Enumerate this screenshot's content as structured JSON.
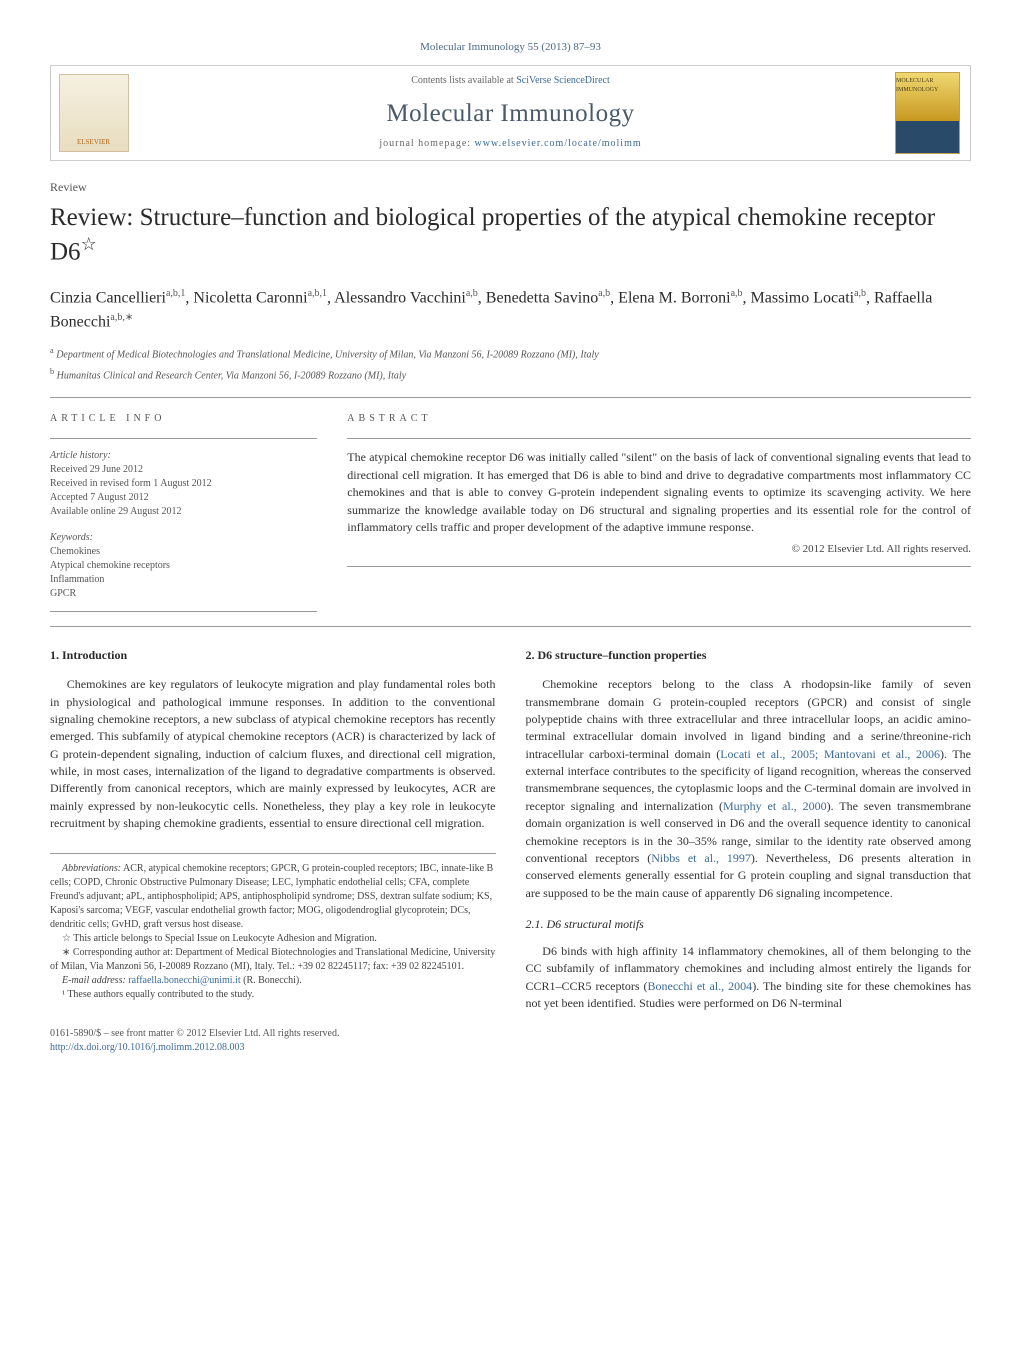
{
  "journal_ref": "Molecular Immunology 55 (2013) 87–93",
  "header": {
    "contents_prefix": "Contents lists available at ",
    "contents_link": "SciVerse ScienceDirect",
    "journal_title": "Molecular Immunology",
    "homepage_prefix": "journal homepage: ",
    "homepage_url": "www.elsevier.com/locate/molimm",
    "publisher_name": "ELSEVIER",
    "cover_caption": "MOLECULAR IMMUNOLOGY"
  },
  "article_type": "Review",
  "title": "Review: Structure–function and biological properties of the atypical chemokine receptor D6",
  "title_star": "☆",
  "authors": "Cinzia Cancellieri",
  "author_list": [
    {
      "name": "Cinzia Cancellieri",
      "aff": "a,b,1"
    },
    {
      "name": "Nicoletta Caronni",
      "aff": "a,b,1"
    },
    {
      "name": "Alessandro Vacchini",
      "aff": "a,b"
    },
    {
      "name": "Benedetta Savino",
      "aff": "a,b"
    },
    {
      "name": "Elena M. Borroni",
      "aff": "a,b"
    },
    {
      "name": "Massimo Locati",
      "aff": "a,b"
    },
    {
      "name": "Raffaella Bonecchi",
      "aff": "a,b,∗"
    }
  ],
  "affiliations": [
    {
      "sup": "a",
      "text": "Department of Medical Biotechnologies and Translational Medicine, University of Milan, Via Manzoni 56, I-20089 Rozzano (MI), Italy"
    },
    {
      "sup": "b",
      "text": "Humanitas Clinical and Research Center, Via Manzoni 56, I-20089 Rozzano (MI), Italy"
    }
  ],
  "info_heading": "article info",
  "abstract_heading": "abstract",
  "history_label": "Article history:",
  "history": [
    "Received 29 June 2012",
    "Received in revised form 1 August 2012",
    "Accepted 7 August 2012",
    "Available online 29 August 2012"
  ],
  "keywords_label": "Keywords:",
  "keywords": [
    "Chemokines",
    "Atypical chemokine receptors",
    "Inflammation",
    "GPCR"
  ],
  "abstract": "The atypical chemokine receptor D6 was initially called \"silent\" on the basis of lack of conventional signaling events that lead to directional cell migration. It has emerged that D6 is able to bind and drive to degradative compartments most inflammatory CC chemokines and that is able to convey G-protein independent signaling events to optimize its scavenging activity. We here summarize the knowledge available today on D6 structural and signaling properties and its essential role for the control of inflammatory cells traffic and proper development of the adaptive immune response.",
  "copyright": "© 2012 Elsevier Ltd. All rights reserved.",
  "sections": {
    "s1": {
      "heading": "1.  Introduction",
      "p1": "Chemokines are key regulators of leukocyte migration and play fundamental roles both in physiological and pathological immune responses. In addition to the conventional signaling chemokine receptors, a new subclass of atypical chemokine receptors has recently emerged. This subfamily of atypical chemokine receptors (ACR) is characterized by lack of G protein-dependent signaling, induction of calcium fluxes, and directional cell migration, while, in most cases, internalization of the ligand to degradative compartments is observed. Differently from canonical receptors, which are mainly expressed by leukocytes, ACR are mainly expressed by non-leukocytic cells. Nonetheless, they play a key role in leukocyte recruitment by shaping chemokine gradients, essential to ensure directional cell migration."
    },
    "s2": {
      "heading": "2.  D6 structure–function properties",
      "p1_a": "Chemokine receptors belong to the class A rhodopsin-like family of seven transmembrane domain G protein-coupled receptors (GPCR) and consist of single polypeptide chains with three extracellular and three intracellular loops, an acidic amino-terminal extracellular domain involved in ligand binding and a serine/threonine-rich intracellular carboxi-terminal domain (",
      "cite1": "Locati et al., 2005; Mantovani et al., 2006",
      "p1_b": "). The external interface contributes to the specificity of ligand recognition, whereas the conserved transmembrane sequences, the cytoplasmic loops and the C-terminal domain are involved in receptor signaling and internalization (",
      "cite2": "Murphy et al., 2000",
      "p1_c": "). The seven transmembrane domain organization is well conserved in D6 and the overall sequence identity to canonical chemokine receptors is in the 30–35% range, similar to the identity rate observed among conventional receptors (",
      "cite3": "Nibbs et al., 1997",
      "p1_d": "). Nevertheless, D6 presents alteration in conserved elements generally essential for G protein coupling and signal transduction that are supposed to be the main cause of apparently D6 signaling incompetence.",
      "sub": "2.1.  D6 structural motifs",
      "p2_a": "D6 binds with high affinity 14 inflammatory chemokines, all of them belonging to the CC subfamily of inflammatory chemokines and including almost entirely the ligands for CCR1–CCR5 receptors (",
      "cite4": "Bonecchi et al., 2004",
      "p2_b": "). The binding site for these chemokines has not yet been identified. Studies were performed on D6 N-terminal"
    }
  },
  "footnotes": {
    "abbrev_label": "Abbreviations:",
    "abbrev_text": "ACR, atypical chemokine receptors; GPCR, G protein-coupled receptors; IBC, innate-like B cells; COPD, Chronic Obstructive Pulmonary Disease; LEC, lymphatic endothelial cells; CFA, complete Freund's adjuvant; aPL, antiphospholipid; APS, antiphospholipid syndrome; DSS, dextran sulfate sodium; KS, Kaposi's sarcoma; VEGF, vascular endothelial growth factor; MOG, oligodendroglial glycoprotein; DCs, dendritic cells; GvHD, graft versus host disease.",
    "star_note": "☆ This article belongs to Special Issue on Leukocyte Adhesion and Migration.",
    "corr_note": "∗ Corresponding author at: Department of Medical Biotechnologies and Translational Medicine, University of Milan, Via Manzoni 56, I-20089 Rozzano (MI), Italy. Tel.: +39 02 82245117; fax: +39 02 82245101.",
    "email_label": "E-mail address:",
    "email": "raffaella.bonecchi@unimi.it",
    "email_person": "(R. Bonecchi).",
    "equal_note": "¹ These authors equally contributed to the study."
  },
  "footer": {
    "left_a": "0161-5890/$ – see front matter © 2012 Elsevier Ltd. All rights reserved.",
    "left_b": "http://dx.doi.org/10.1016/j.molimm.2012.08.003"
  },
  "colors": {
    "link": "#3a6a9a",
    "text": "#2a2a2a",
    "muted": "#555555",
    "rule": "#999999"
  }
}
